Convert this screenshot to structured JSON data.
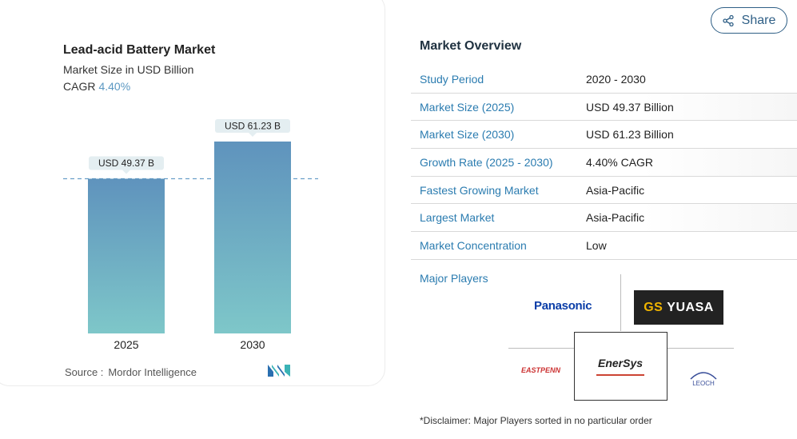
{
  "chart_card": {
    "title": "Lead-acid Battery Market",
    "subtitle": "Market Size in USD Billion",
    "cagr_label": "CAGR",
    "cagr_value": "4.40%",
    "source_label": "Source :",
    "source_value": "Mordor Intelligence"
  },
  "chart_data": {
    "type": "bar",
    "categories": [
      "2025",
      "2030"
    ],
    "values": [
      49.37,
      61.23
    ],
    "data_labels": [
      "USD 49.37 B",
      "USD 61.23 B"
    ],
    "title": "Lead-acid Battery Market",
    "ylabel": "",
    "xlabel": "",
    "reference_line": "dashed at 2025 value",
    "ylim": [
      0,
      61.23
    ],
    "colors": {
      "bar_top": "#5f93bd",
      "bar_bottom": "#7ec7c9",
      "label_bg": "#e4eef1",
      "dash": "#6a9fc9"
    }
  },
  "share": {
    "label": "Share",
    "icon": "share-icon"
  },
  "overview": {
    "title": "Market Overview",
    "rows": [
      {
        "key": "Study Period",
        "value": "2020 - 2030"
      },
      {
        "key": "Market Size (2025)",
        "value": "USD 49.37 Billion"
      },
      {
        "key": "Market Size (2030)",
        "value": "USD 61.23 Billion"
      },
      {
        "key": "Growth Rate (2025 - 2030)",
        "value": "4.40% CAGR"
      },
      {
        "key": "Fastest Growing Market",
        "value": "Asia-Pacific"
      },
      {
        "key": "Largest Market",
        "value": "Asia-Pacific"
      },
      {
        "key": "Market Concentration",
        "value": "Low"
      }
    ],
    "players_label": "Major Players",
    "players": {
      "panasonic": "Panasonic",
      "gs_yuasa_prefix": "GS",
      "gs_yuasa_name": "YUASA",
      "enersys": "EnerSys",
      "eastpenn": "EASTPENN",
      "leoch": "LEOCH"
    },
    "disclaimer": "*Disclaimer: Major Players sorted in no particular order"
  },
  "colors": {
    "accent": "#2b7cb0",
    "share_border": "#2f5f86"
  }
}
